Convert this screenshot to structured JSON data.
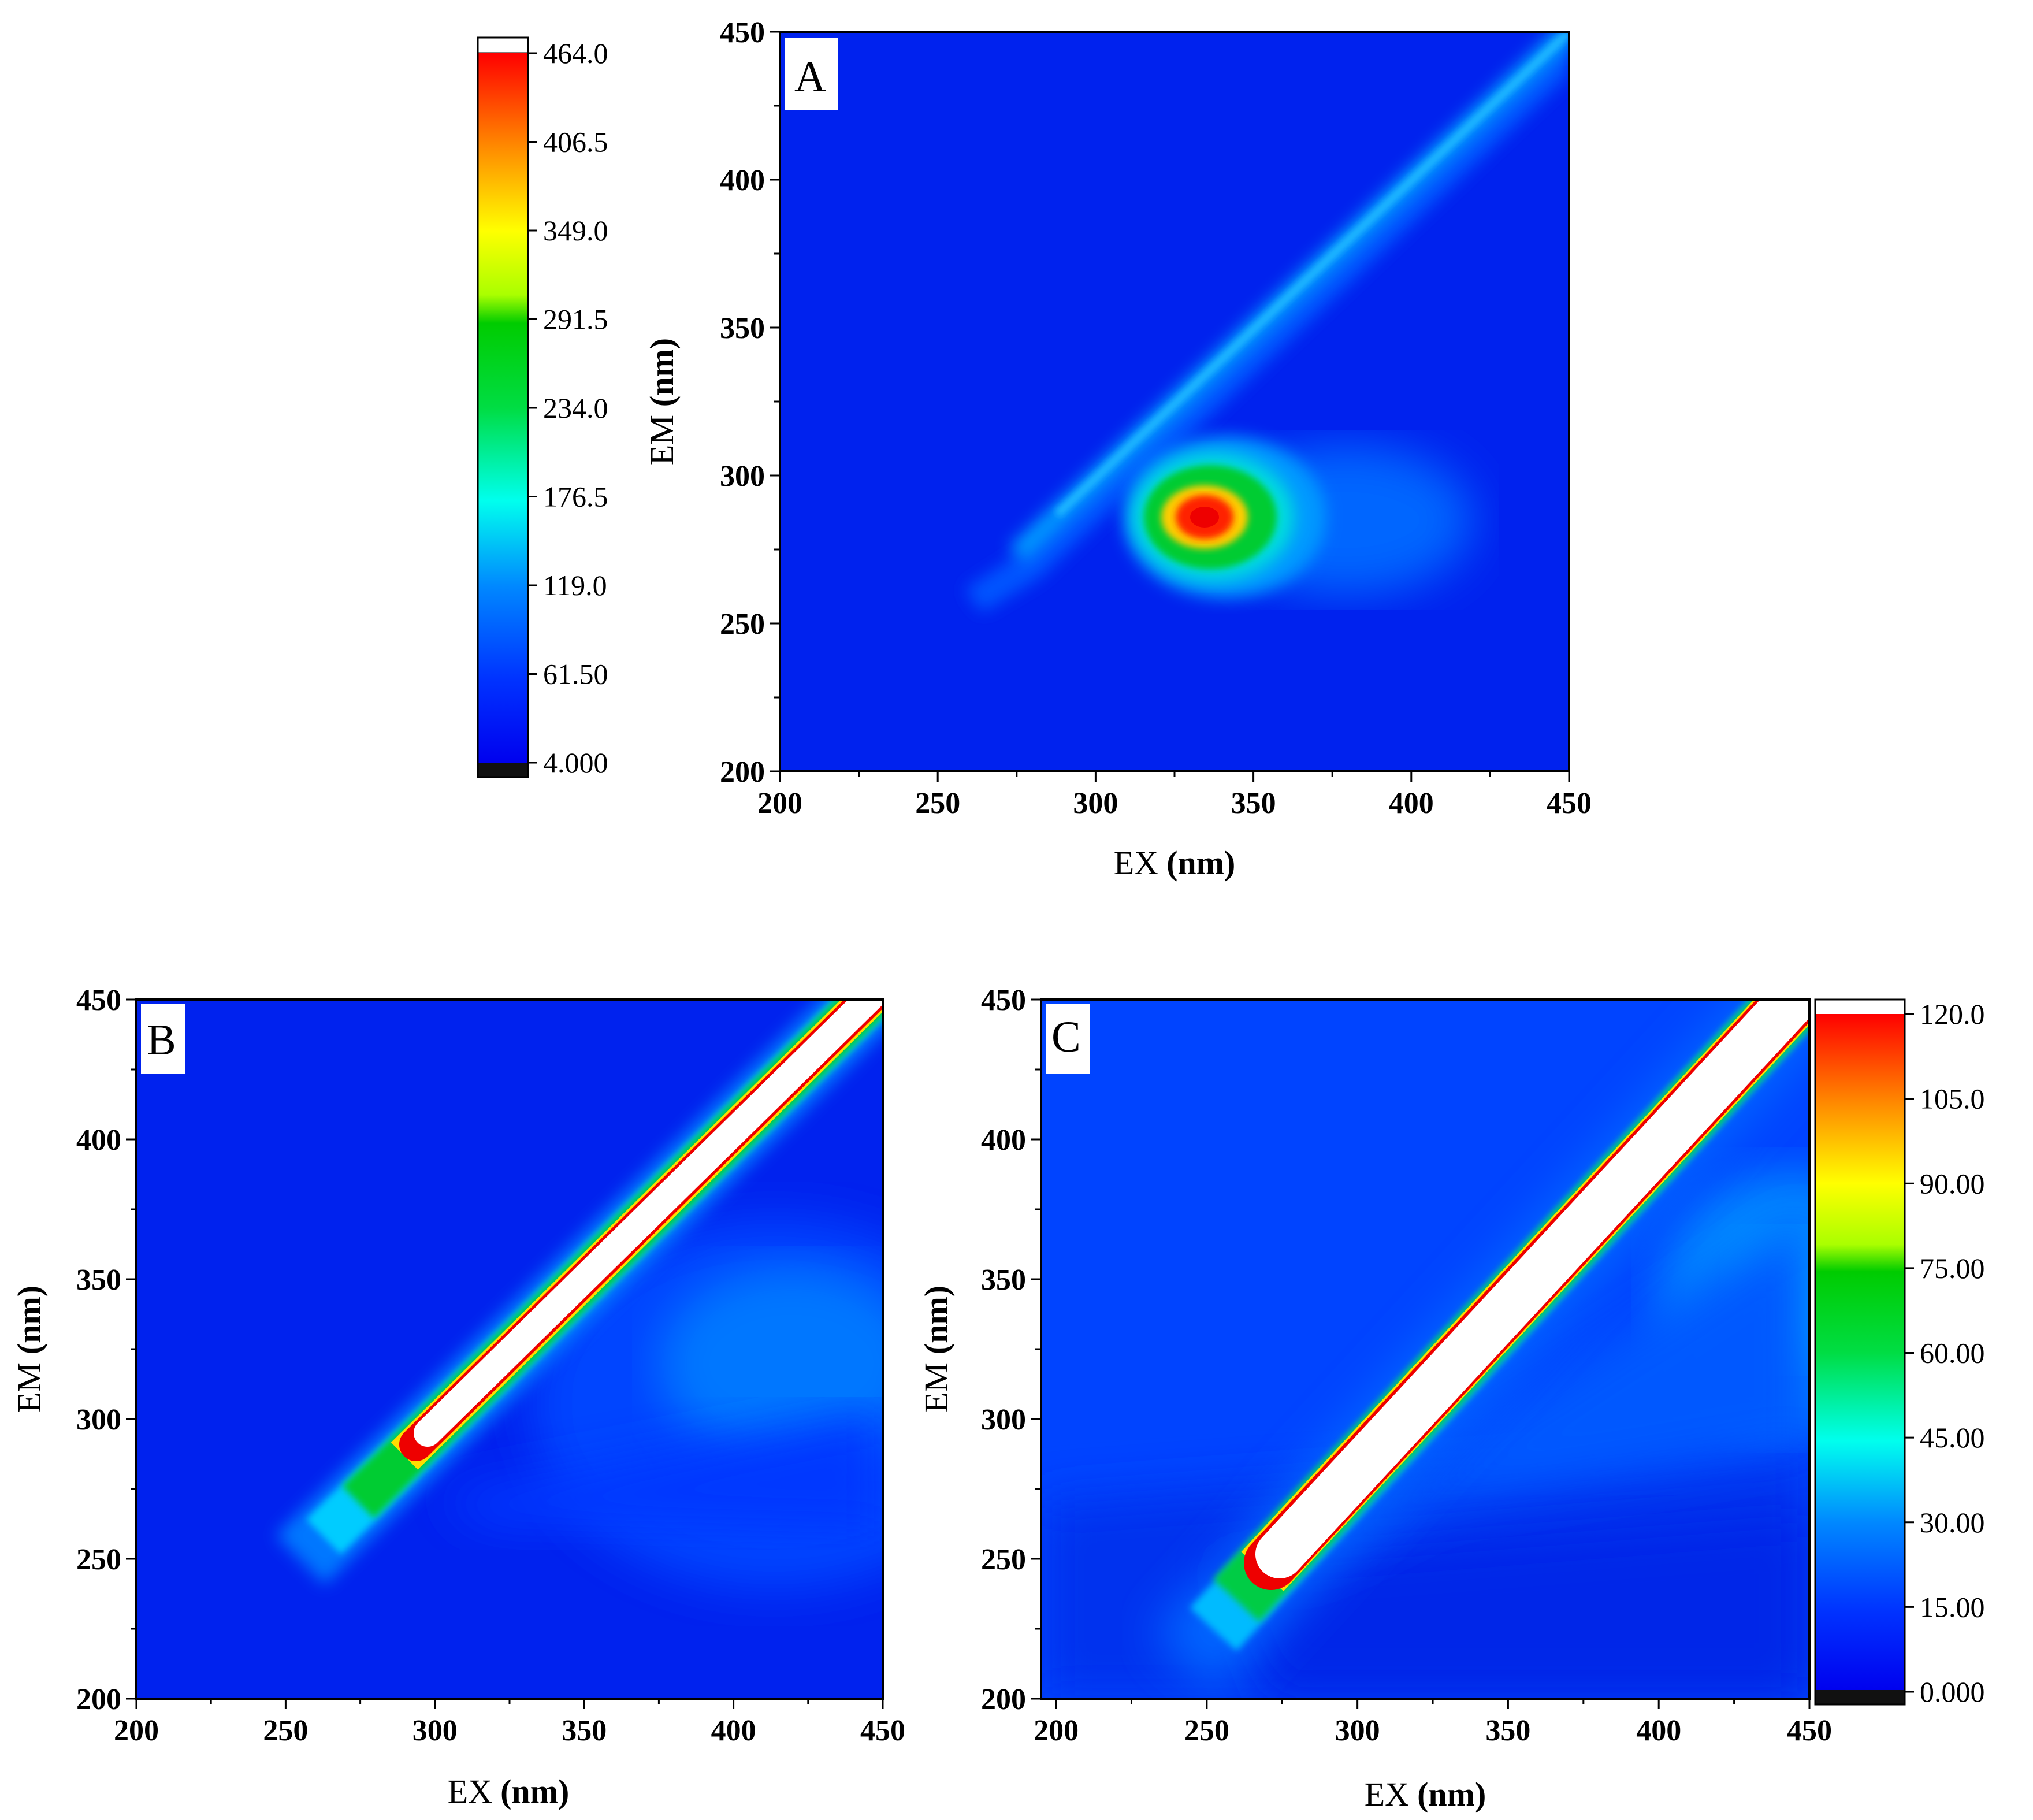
{
  "chart_data": [
    {
      "type": "heatmap",
      "panel": "A",
      "xlabel": "EX",
      "xunit": "(nm)",
      "ylabel": "EM",
      "yunit": "(nm)",
      "xlim": [
        200,
        450
      ],
      "ylim": [
        200,
        450
      ],
      "xticks": [
        200,
        250,
        300,
        350,
        400,
        450
      ],
      "yticks": [
        200,
        250,
        300,
        350,
        400,
        450
      ],
      "colorbar": {
        "min": 4.0,
        "max": 464.0,
        "labels": [
          "464.0",
          "406.5",
          "349.0",
          "291.5",
          "234.0",
          "176.5",
          "119.0",
          "61.50",
          "4.000"
        ]
      },
      "features": [
        {
          "kind": "scatter-line",
          "ex_range": [
            260,
            450
          ],
          "em_offset": 0,
          "peak_value": 110
        },
        {
          "kind": "peak",
          "ex": 335,
          "em": 285,
          "value": 464
        }
      ]
    },
    {
      "type": "heatmap",
      "panel": "B",
      "xlabel": "EX",
      "xunit": "(nm)",
      "ylabel": "EM",
      "yunit": "(nm)",
      "xlim": [
        200,
        450
      ],
      "ylim": [
        200,
        450
      ],
      "xticks": [
        200,
        250,
        300,
        350,
        400,
        450
      ],
      "yticks": [
        200,
        250,
        300,
        350,
        400,
        450
      ],
      "colorbar": "shared-with-C",
      "features": [
        {
          "kind": "scatter-line",
          "ex_range": [
            245,
            450
          ],
          "em_offset": 0,
          "peak_value": 120
        },
        {
          "kind": "peak",
          "ex": 415,
          "em": 335,
          "value": 18
        }
      ]
    },
    {
      "type": "heatmap",
      "panel": "C",
      "xlabel": "EX",
      "xunit": "(nm)",
      "ylabel": "EM",
      "yunit": "(nm)",
      "xlim": [
        195,
        450
      ],
      "ylim": [
        200,
        450
      ],
      "xticks": [
        200,
        250,
        300,
        350,
        400,
        450
      ],
      "yticks": [
        200,
        250,
        300,
        350,
        400,
        450
      ],
      "colorbar": {
        "min": 0.0,
        "max": 120.0,
        "labels": [
          "120.0",
          "105.0",
          "90.00",
          "75.00",
          "60.00",
          "45.00",
          "30.00",
          "15.00",
          "0.000"
        ]
      },
      "features": [
        {
          "kind": "scatter-line",
          "ex_range": [
            250,
            450
          ],
          "em_offset": 15,
          "peak_value": 120
        },
        {
          "kind": "peak",
          "ex": 440,
          "em": 340,
          "value": 22
        }
      ]
    }
  ]
}
